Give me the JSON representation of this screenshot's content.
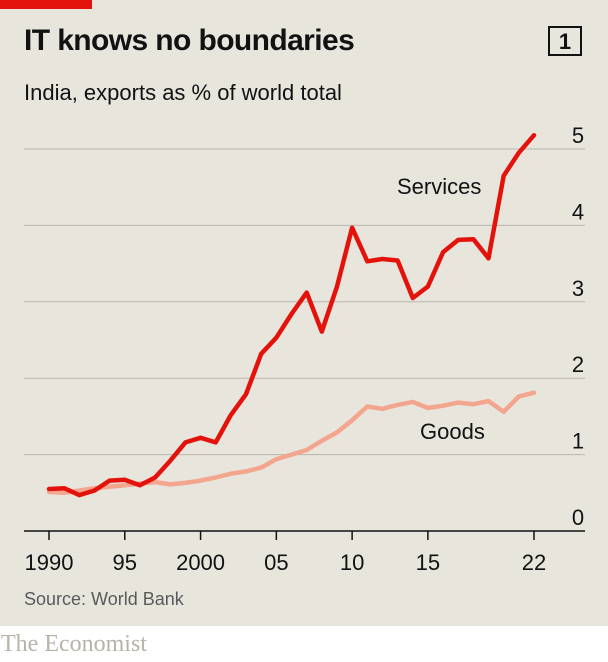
{
  "header": {
    "title": "IT knows no boundaries",
    "chart_number": "1",
    "subtitle": "India, exports as % of world total"
  },
  "footer": {
    "source": "Source: World Bank",
    "brand": "The Economist"
  },
  "colors": {
    "services": "#e3120b",
    "goods": "#f4a58d",
    "background": "#e8e5dd",
    "accent": "#e3120b"
  },
  "chart_data": {
    "type": "line",
    "title": "IT knows no boundaries",
    "subtitle": "India, exports as % of world total",
    "xlabel": "",
    "ylabel": "",
    "xlim": [
      1990,
      2022
    ],
    "ylim": [
      0,
      5
    ],
    "grid": true,
    "y_axis_side": "right",
    "x_ticks": [
      {
        "value": 1990,
        "label": "1990"
      },
      {
        "value": 1995,
        "label": "95"
      },
      {
        "value": 2000,
        "label": "2000"
      },
      {
        "value": 2005,
        "label": "05"
      },
      {
        "value": 2010,
        "label": "10"
      },
      {
        "value": 2015,
        "label": "15"
      },
      {
        "value": 2022,
        "label": "22"
      }
    ],
    "y_ticks": [
      {
        "value": 0,
        "label": "0"
      },
      {
        "value": 1,
        "label": "1"
      },
      {
        "value": 2,
        "label": "2"
      },
      {
        "value": 3,
        "label": "3"
      },
      {
        "value": 4,
        "label": "4"
      },
      {
        "value": 5,
        "label": "5"
      }
    ],
    "series": [
      {
        "name": "Services",
        "x": [
          1990,
          1991,
          1992,
          1993,
          1994,
          1995,
          1996,
          1997,
          1998,
          1999,
          2000,
          2001,
          2002,
          2003,
          2004,
          2005,
          2006,
          2007,
          2008,
          2009,
          2010,
          2011,
          2012,
          2013,
          2014,
          2015,
          2016,
          2017,
          2018,
          2019,
          2020,
          2021,
          2022
        ],
        "values": [
          0.55,
          0.56,
          0.47,
          0.53,
          0.66,
          0.67,
          0.6,
          0.7,
          0.92,
          1.16,
          1.22,
          1.16,
          1.52,
          1.79,
          2.32,
          2.53,
          2.84,
          3.12,
          2.61,
          3.2,
          3.97,
          3.53,
          3.56,
          3.54,
          3.05,
          3.2,
          3.65,
          3.81,
          3.82,
          3.57,
          4.65,
          4.95,
          5.18
        ]
      },
      {
        "name": "Goods",
        "x": [
          1990,
          1991,
          1992,
          1993,
          1994,
          1995,
          1996,
          1997,
          1998,
          1999,
          2000,
          2001,
          2002,
          2003,
          2004,
          2005,
          2006,
          2007,
          2008,
          2009,
          2010,
          2011,
          2012,
          2013,
          2014,
          2015,
          2016,
          2017,
          2018,
          2019,
          2020,
          2021,
          2022
        ],
        "values": [
          0.51,
          0.5,
          0.53,
          0.56,
          0.58,
          0.6,
          0.62,
          0.64,
          0.61,
          0.63,
          0.66,
          0.7,
          0.75,
          0.78,
          0.83,
          0.94,
          1.0,
          1.06,
          1.18,
          1.29,
          1.45,
          1.63,
          1.6,
          1.65,
          1.69,
          1.61,
          1.64,
          1.68,
          1.66,
          1.7,
          1.56,
          1.76,
          1.81
        ]
      }
    ]
  }
}
